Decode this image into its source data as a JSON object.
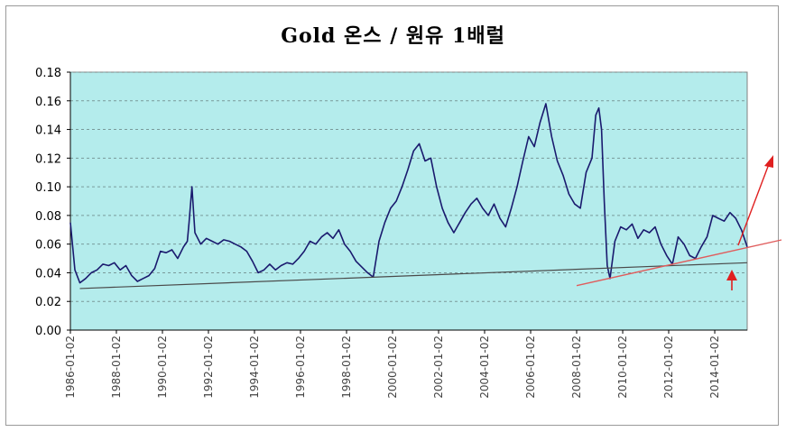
{
  "chart_data": {
    "type": "line",
    "title": "Gold 온스 / 원유 1배럴",
    "xlabel": "",
    "ylabel": "",
    "ylim": [
      0,
      0.18
    ],
    "yticks": [
      "0.00",
      "0.02",
      "0.04",
      "0.06",
      "0.08",
      "0.10",
      "0.12",
      "0.14",
      "0.16",
      "0.18"
    ],
    "xticks": [
      "1986-01-02",
      "1988-01-02",
      "1990-01-02",
      "1992-01-02",
      "1994-01-02",
      "1996-01-02",
      "1998-01-02",
      "2000-01-02",
      "2002-01-02",
      "2004-01-02",
      "2006-01-02",
      "2008-01-02",
      "2010-01-02",
      "2012-01-02",
      "2014-01-02"
    ],
    "xrange": [
      "1986-01-02",
      "2015-06-01"
    ],
    "grid": true,
    "plot_background": "#b4ecec",
    "series": [
      {
        "color": "#1a1a6e",
        "points": [
          [
            "1986-01-02",
            0.075
          ],
          [
            "1986-03-15",
            0.042
          ],
          [
            "1986-06-01",
            0.033
          ],
          [
            "1986-09-01",
            0.036
          ],
          [
            "1986-12-01",
            0.04
          ],
          [
            "1987-03-01",
            0.042
          ],
          [
            "1987-06-01",
            0.046
          ],
          [
            "1987-09-01",
            0.045
          ],
          [
            "1987-12-01",
            0.047
          ],
          [
            "1988-03-01",
            0.042
          ],
          [
            "1988-06-01",
            0.045
          ],
          [
            "1988-09-01",
            0.038
          ],
          [
            "1988-12-01",
            0.034
          ],
          [
            "1989-03-01",
            0.036
          ],
          [
            "1989-06-01",
            0.038
          ],
          [
            "1989-09-01",
            0.043
          ],
          [
            "1989-12-01",
            0.055
          ],
          [
            "1990-03-01",
            0.054
          ],
          [
            "1990-06-01",
            0.056
          ],
          [
            "1990-09-01",
            0.05
          ],
          [
            "1990-12-01",
            0.058
          ],
          [
            "1991-02-01",
            0.062
          ],
          [
            "1991-03-01",
            0.075
          ],
          [
            "1991-04-15",
            0.1
          ],
          [
            "1991-06-01",
            0.068
          ],
          [
            "1991-09-01",
            0.06
          ],
          [
            "1991-12-01",
            0.064
          ],
          [
            "1992-03-01",
            0.062
          ],
          [
            "1992-06-01",
            0.06
          ],
          [
            "1992-09-01",
            0.063
          ],
          [
            "1992-12-01",
            0.062
          ],
          [
            "1993-03-01",
            0.06
          ],
          [
            "1993-06-01",
            0.058
          ],
          [
            "1993-09-01",
            0.055
          ],
          [
            "1993-12-01",
            0.048
          ],
          [
            "1994-03-01",
            0.04
          ],
          [
            "1994-06-01",
            0.042
          ],
          [
            "1994-09-01",
            0.046
          ],
          [
            "1994-12-01",
            0.042
          ],
          [
            "1995-03-01",
            0.045
          ],
          [
            "1995-06-01",
            0.047
          ],
          [
            "1995-09-01",
            0.046
          ],
          [
            "1995-12-01",
            0.05
          ],
          [
            "1996-03-01",
            0.055
          ],
          [
            "1996-06-01",
            0.062
          ],
          [
            "1996-09-01",
            0.06
          ],
          [
            "1996-12-01",
            0.065
          ],
          [
            "1997-03-01",
            0.068
          ],
          [
            "1997-06-01",
            0.064
          ],
          [
            "1997-09-01",
            0.07
          ],
          [
            "1997-12-01",
            0.06
          ],
          [
            "1998-03-01",
            0.055
          ],
          [
            "1998-06-01",
            0.048
          ],
          [
            "1998-09-01",
            0.044
          ],
          [
            "1998-12-01",
            0.04
          ],
          [
            "1999-03-01",
            0.037
          ],
          [
            "1999-06-01",
            0.062
          ],
          [
            "1999-09-01",
            0.075
          ],
          [
            "1999-12-01",
            0.085
          ],
          [
            "2000-03-01",
            0.09
          ],
          [
            "2000-06-01",
            0.1
          ],
          [
            "2000-09-01",
            0.112
          ],
          [
            "2000-12-01",
            0.125
          ],
          [
            "2001-03-01",
            0.13
          ],
          [
            "2001-06-01",
            0.118
          ],
          [
            "2001-09-01",
            0.12
          ],
          [
            "2001-12-01",
            0.1
          ],
          [
            "2002-03-01",
            0.085
          ],
          [
            "2002-06-01",
            0.075
          ],
          [
            "2002-09-01",
            0.068
          ],
          [
            "2002-12-01",
            0.075
          ],
          [
            "2003-03-01",
            0.082
          ],
          [
            "2003-06-01",
            0.088
          ],
          [
            "2003-09-01",
            0.092
          ],
          [
            "2003-12-01",
            0.085
          ],
          [
            "2004-03-01",
            0.08
          ],
          [
            "2004-06-01",
            0.088
          ],
          [
            "2004-09-01",
            0.078
          ],
          [
            "2004-12-01",
            0.072
          ],
          [
            "2005-03-01",
            0.085
          ],
          [
            "2005-06-01",
            0.1
          ],
          [
            "2005-09-01",
            0.118
          ],
          [
            "2005-12-01",
            0.135
          ],
          [
            "2006-03-01",
            0.128
          ],
          [
            "2006-06-01",
            0.145
          ],
          [
            "2006-09-01",
            0.158
          ],
          [
            "2006-12-01",
            0.135
          ],
          [
            "2007-03-01",
            0.118
          ],
          [
            "2007-06-01",
            0.108
          ],
          [
            "2007-09-01",
            0.095
          ],
          [
            "2007-12-01",
            0.088
          ],
          [
            "2008-03-01",
            0.085
          ],
          [
            "2008-06-01",
            0.11
          ],
          [
            "2008-09-01",
            0.12
          ],
          [
            "2008-11-01",
            0.15
          ],
          [
            "2008-12-20",
            0.155
          ],
          [
            "2009-02-01",
            0.14
          ],
          [
            "2009-03-15",
            0.09
          ],
          [
            "2009-05-01",
            0.045
          ],
          [
            "2009-06-15",
            0.036
          ],
          [
            "2009-09-01",
            0.062
          ],
          [
            "2009-12-01",
            0.072
          ],
          [
            "2010-03-01",
            0.07
          ],
          [
            "2010-06-01",
            0.074
          ],
          [
            "2010-09-01",
            0.064
          ],
          [
            "2010-12-01",
            0.07
          ],
          [
            "2011-03-01",
            0.068
          ],
          [
            "2011-06-01",
            0.072
          ],
          [
            "2011-09-01",
            0.06
          ],
          [
            "2011-12-01",
            0.052
          ],
          [
            "2012-03-01",
            0.046
          ],
          [
            "2012-06-01",
            0.065
          ],
          [
            "2012-09-01",
            0.06
          ],
          [
            "2012-12-01",
            0.052
          ],
          [
            "2013-03-01",
            0.05
          ],
          [
            "2013-06-01",
            0.058
          ],
          [
            "2013-09-01",
            0.065
          ],
          [
            "2013-12-01",
            0.08
          ],
          [
            "2014-03-01",
            0.078
          ],
          [
            "2014-06-01",
            0.076
          ],
          [
            "2014-09-01",
            0.082
          ],
          [
            "2014-12-01",
            0.078
          ],
          [
            "2015-03-01",
            0.07
          ],
          [
            "2015-06-01",
            0.058
          ]
        ]
      }
    ],
    "annotations": {
      "support_line": {
        "color": "#4a4a4a",
        "points": [
          [
            "1986-06-01",
            0.029
          ],
          [
            "2015-06-01",
            0.047
          ]
        ]
      },
      "trend_line": {
        "color": "#e05c5c",
        "points": [
          [
            "2008-01-02",
            0.031
          ],
          [
            "2015-06-01",
            0.062
          ]
        ]
      },
      "arrow_up_right": {
        "color": "#e02020"
      },
      "arrow_up_small": {
        "color": "#e02020"
      }
    }
  }
}
